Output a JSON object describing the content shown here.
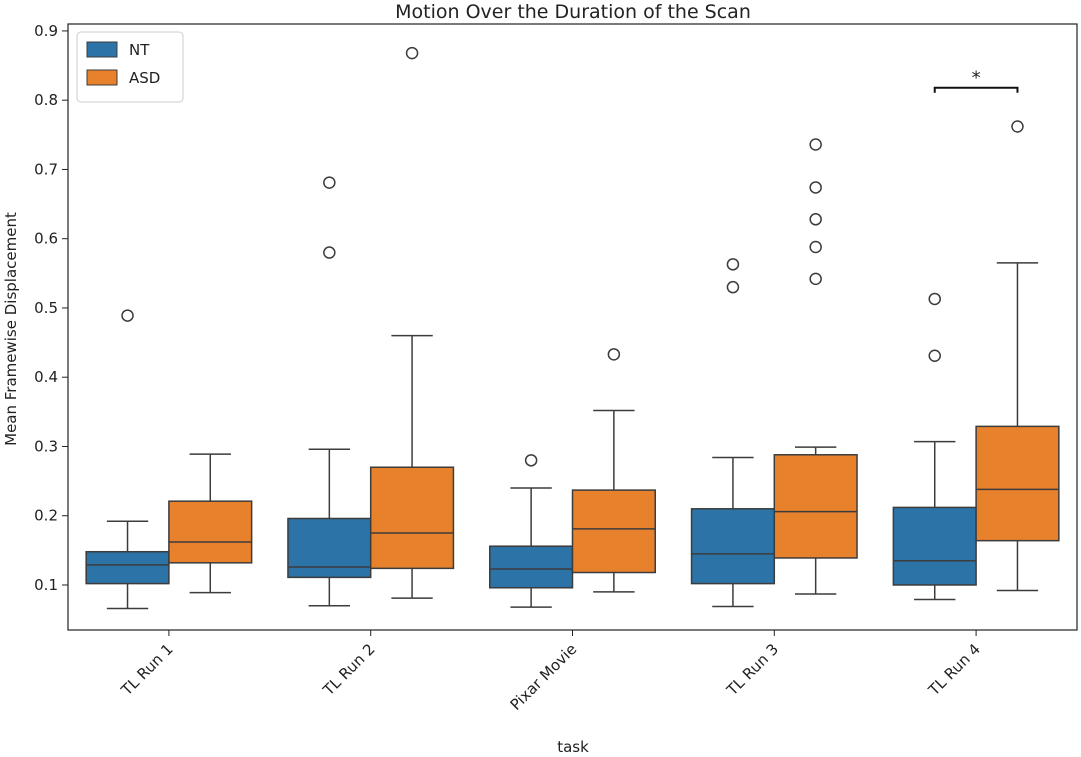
{
  "chart_data": {
    "type": "box",
    "title": "Motion Over the Duration of the Scan",
    "xlabel": "task",
    "ylabel": "Mean Framewise Displacement",
    "ylim": [
      0.035,
      0.91
    ],
    "yticks": [
      0.1,
      0.2,
      0.3,
      0.4,
      0.5,
      0.6,
      0.7,
      0.8,
      0.9
    ],
    "ytick_labels": [
      "0.1",
      "0.2",
      "0.3",
      "0.4",
      "0.5",
      "0.6",
      "0.7",
      "0.8",
      "0.9"
    ],
    "categories": [
      "TL Run 1",
      "TL Run 2",
      "Pixar Movie",
      "TL Run 3",
      "TL Run 4"
    ],
    "grid": false,
    "legend_position": "upper-left",
    "series": [
      {
        "name": "NT",
        "color": "#2c73a8",
        "boxes": [
          {
            "whislo": 0.066,
            "q1": 0.102,
            "med": 0.129,
            "q3": 0.148,
            "whishi": 0.192,
            "fliers": [
              0.489
            ]
          },
          {
            "whislo": 0.07,
            "q1": 0.111,
            "med": 0.126,
            "q3": 0.196,
            "whishi": 0.296,
            "fliers": [
              0.58,
              0.681
            ]
          },
          {
            "whislo": 0.068,
            "q1": 0.096,
            "med": 0.123,
            "q3": 0.156,
            "whishi": 0.24,
            "fliers": [
              0.28
            ]
          },
          {
            "whislo": 0.069,
            "q1": 0.102,
            "med": 0.145,
            "q3": 0.21,
            "whishi": 0.284,
            "fliers": [
              0.53,
              0.563
            ]
          },
          {
            "whislo": 0.079,
            "q1": 0.1,
            "med": 0.135,
            "q3": 0.212,
            "whishi": 0.307,
            "fliers": [
              0.431,
              0.513
            ]
          }
        ]
      },
      {
        "name": "ASD",
        "color": "#e8812c",
        "boxes": [
          {
            "whislo": 0.089,
            "q1": 0.132,
            "med": 0.162,
            "q3": 0.221,
            "whishi": 0.289,
            "fliers": []
          },
          {
            "whislo": 0.081,
            "q1": 0.124,
            "med": 0.175,
            "q3": 0.27,
            "whishi": 0.46,
            "fliers": [
              0.868
            ]
          },
          {
            "whislo": 0.09,
            "q1": 0.118,
            "med": 0.181,
            "q3": 0.237,
            "whishi": 0.352,
            "fliers": [
              0.433
            ]
          },
          {
            "whislo": 0.087,
            "q1": 0.139,
            "med": 0.206,
            "q3": 0.288,
            "whishi": 0.299,
            "fliers": [
              0.542,
              0.588,
              0.628,
              0.674,
              0.736
            ]
          },
          {
            "whislo": 0.092,
            "q1": 0.164,
            "med": 0.238,
            "q3": 0.329,
            "whishi": 0.565,
            "fliers": [
              0.762
            ]
          }
        ]
      }
    ],
    "annotations": [
      {
        "text": "*",
        "category_index": 4,
        "y": 0.818
      }
    ]
  }
}
